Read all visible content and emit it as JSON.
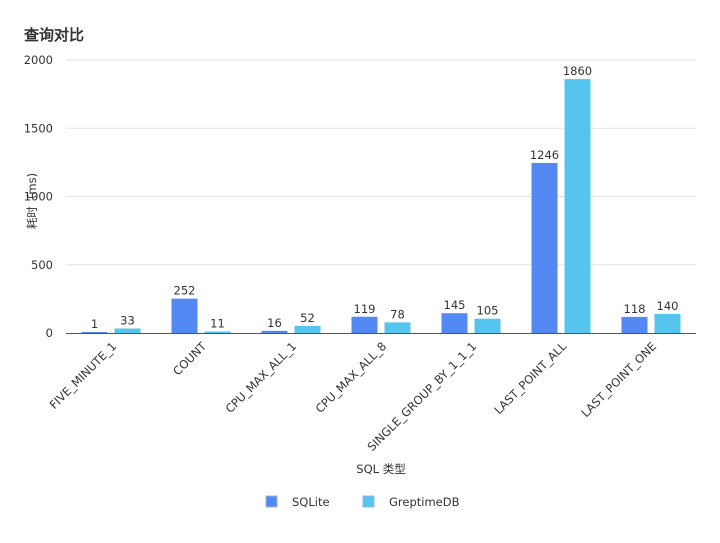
{
  "chart_data": {
    "type": "bar",
    "title": "查询对比",
    "xlabel": "SQL 类型",
    "ylabel": "耗时（ms)",
    "ylim": [
      0,
      2000
    ],
    "yticks": [
      0,
      500,
      1000,
      1500,
      2000
    ],
    "grid": true,
    "legend_position": "bottom-center",
    "categories": [
      "FIVE_MINUTE_1",
      "COUNT",
      "CPU_MAX_ALL_1",
      "CPU_MAX_ALL_8",
      "SINGLE_GROUP_BY_1_1_1",
      "LAST_POINT_ALL",
      "LAST_POINT_ONE"
    ],
    "series": [
      {
        "name": "SQLite",
        "color": "#5488f2",
        "values": [
          1,
          252,
          16,
          119,
          145,
          1246,
          118
        ]
      },
      {
        "name": "GreptimeDB",
        "color": "#55c5f0",
        "values": [
          33,
          11,
          52,
          78,
          105,
          1860,
          140
        ]
      }
    ]
  }
}
